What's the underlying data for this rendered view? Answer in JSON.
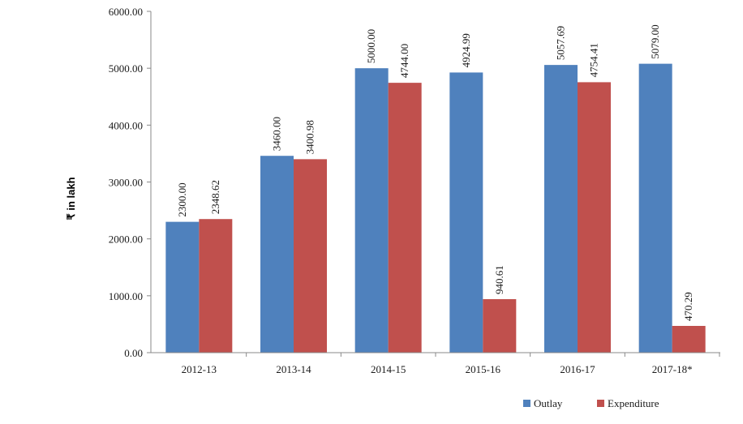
{
  "chart_data": {
    "type": "bar",
    "title": "",
    "xlabel": "",
    "ylabel": "₹ in lakh",
    "ylim": [
      0,
      6000
    ],
    "y_ticks": [
      "0.00",
      "1000.00",
      "2000.00",
      "3000.00",
      "4000.00",
      "5000.00",
      "6000.00"
    ],
    "categories": [
      "2012-13",
      "2013-14",
      "2014-15",
      "2015-16",
      "2016-17",
      "2017-18*"
    ],
    "series": [
      {
        "name": "Outlay",
        "color": "#4F81BD",
        "values": [
          2300.0,
          3460.0,
          5000.0,
          4924.99,
          5057.69,
          5079.0
        ],
        "labels": [
          "2300.00",
          "3460.00",
          "5000.00",
          "4924.99",
          "5057.69",
          "5079.00"
        ]
      },
      {
        "name": "Expenditure",
        "color": "#C0504D",
        "values": [
          2348.62,
          3400.98,
          4744.0,
          940.61,
          4754.41,
          470.29
        ],
        "labels": [
          "2348.62",
          "3400.98",
          "4744.00",
          "940.61",
          "4754.41",
          "470.29"
        ]
      }
    ],
    "grid": false,
    "legend_position": "bottom-right"
  }
}
